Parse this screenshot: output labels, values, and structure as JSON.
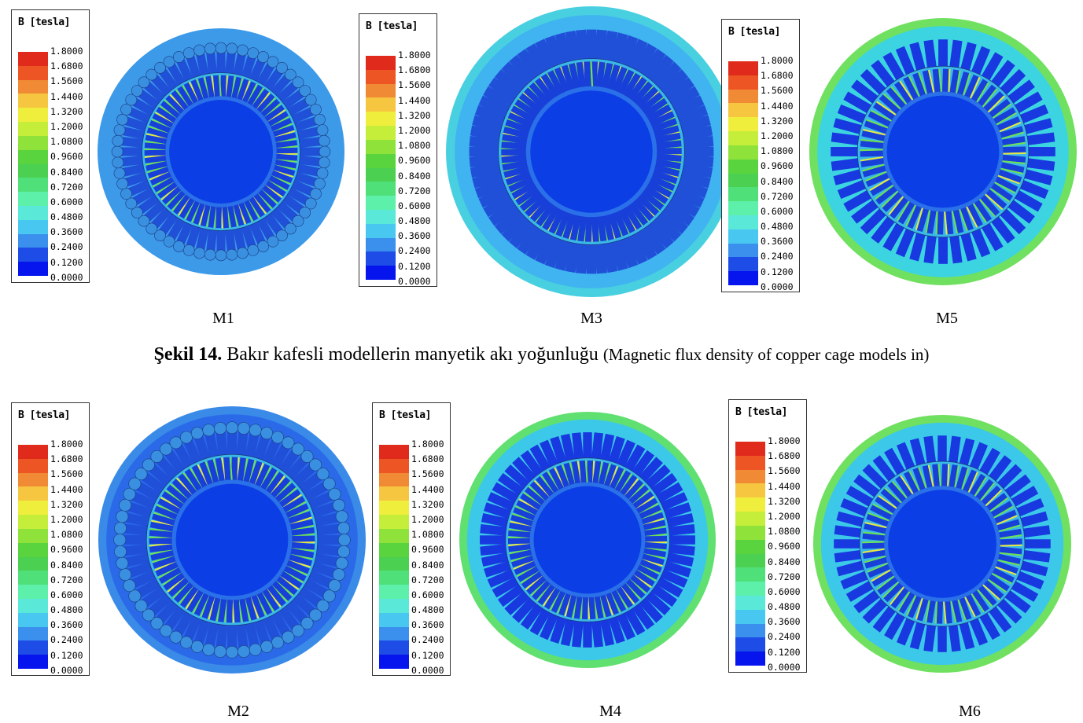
{
  "legend": {
    "title": "B [tesla]",
    "ticks": [
      "1.8000",
      "1.6800",
      "1.5600",
      "1.4400",
      "1.3200",
      "1.2000",
      "1.0800",
      "0.9600",
      "0.8400",
      "0.7200",
      "0.6000",
      "0.4800",
      "0.3600",
      "0.2400",
      "0.1200",
      "0.0000"
    ],
    "colors": [
      "#e02a1c",
      "#ee5524",
      "#f08a34",
      "#f6c640",
      "#f0ee3c",
      "#c4ee3a",
      "#8ee23a",
      "#5ad43e",
      "#4cd052",
      "#50e07a",
      "#5cf0aa",
      "#5ae8d8",
      "#48c8f0",
      "#3a90ec",
      "#1e4ce6",
      "#0614ee"
    ]
  },
  "panels": [
    {
      "id": "M1",
      "label": "M1"
    },
    {
      "id": "M3",
      "label": "M3"
    },
    {
      "id": "M5",
      "label": "M5"
    },
    {
      "id": "M2",
      "label": "M2"
    },
    {
      "id": "M4",
      "label": "M4"
    },
    {
      "id": "M6",
      "label": "M6"
    }
  ],
  "caption": {
    "figure": "Şekil 14.",
    "turkish": "Bakır kafesli modellerin manyetik akı yoğunluğu",
    "english": "(Magnetic flux density of copper cage models in)"
  }
}
